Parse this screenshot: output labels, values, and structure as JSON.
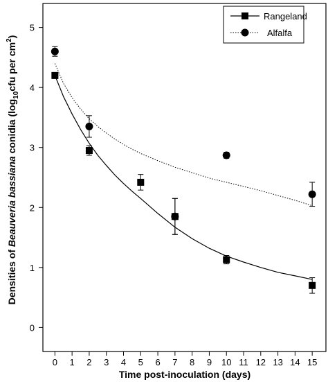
{
  "chart_data": {
    "type": "scatter",
    "xlabel": "Time post-inoculation (days)",
    "ylabel_parts": {
      "p1": "Densities of ",
      "species": "Beauveria bassiana",
      "p2": " conidia (log",
      "sub10": "10",
      "p3": "cfu per cm",
      "sup2": "2",
      "p4": ")"
    },
    "x_ticks": [
      0,
      1,
      2,
      3,
      4,
      5,
      6,
      7,
      8,
      9,
      10,
      11,
      12,
      13,
      14,
      15
    ],
    "y_ticks": [
      0,
      1,
      2,
      3,
      4,
      5
    ],
    "xlim": [
      -0.7,
      15.8
    ],
    "ylim": [
      -0.4,
      5.4
    ],
    "legend_position": "top-right",
    "grid": false,
    "series": [
      {
        "name": "Rangeland",
        "marker": "square",
        "line": "solid",
        "x": [
          0,
          2,
          5,
          7,
          10,
          15
        ],
        "y": [
          4.2,
          2.95,
          2.42,
          1.85,
          1.13,
          0.7
        ],
        "err": [
          0.05,
          0.08,
          0.13,
          0.3,
          0.07,
          0.13
        ],
        "fit_x": [
          0,
          0.5,
          1,
          1.5,
          2,
          2.5,
          3,
          3.5,
          4,
          4.5,
          5,
          6,
          7,
          8,
          9,
          10,
          11,
          12,
          13,
          14,
          15
        ],
        "fit_y": [
          4.2,
          3.85,
          3.56,
          3.3,
          3.07,
          2.87,
          2.7,
          2.54,
          2.4,
          2.27,
          2.15,
          1.9,
          1.67,
          1.48,
          1.32,
          1.19,
          1.09,
          1.0,
          0.92,
          0.86,
          0.8
        ]
      },
      {
        "name": "Alfalfa",
        "marker": "circle",
        "line": "dotted",
        "x": [
          0,
          2,
          7,
          10,
          15
        ],
        "y": [
          4.6,
          3.35,
          1.85,
          2.87,
          2.22
        ],
        "err": [
          0.08,
          0.18,
          0.3,
          0.05,
          0.2
        ],
        "fit_x": [
          0,
          0.5,
          1,
          1.5,
          2,
          2.5,
          3,
          3.5,
          4,
          4.5,
          5,
          6,
          7,
          8,
          9,
          10,
          11,
          12,
          13,
          14,
          15
        ],
        "fit_y": [
          4.4,
          4.07,
          3.83,
          3.64,
          3.48,
          3.35,
          3.24,
          3.14,
          3.05,
          2.97,
          2.9,
          2.78,
          2.67,
          2.58,
          2.49,
          2.42,
          2.35,
          2.28,
          2.2,
          2.12,
          2.03
        ]
      }
    ]
  }
}
